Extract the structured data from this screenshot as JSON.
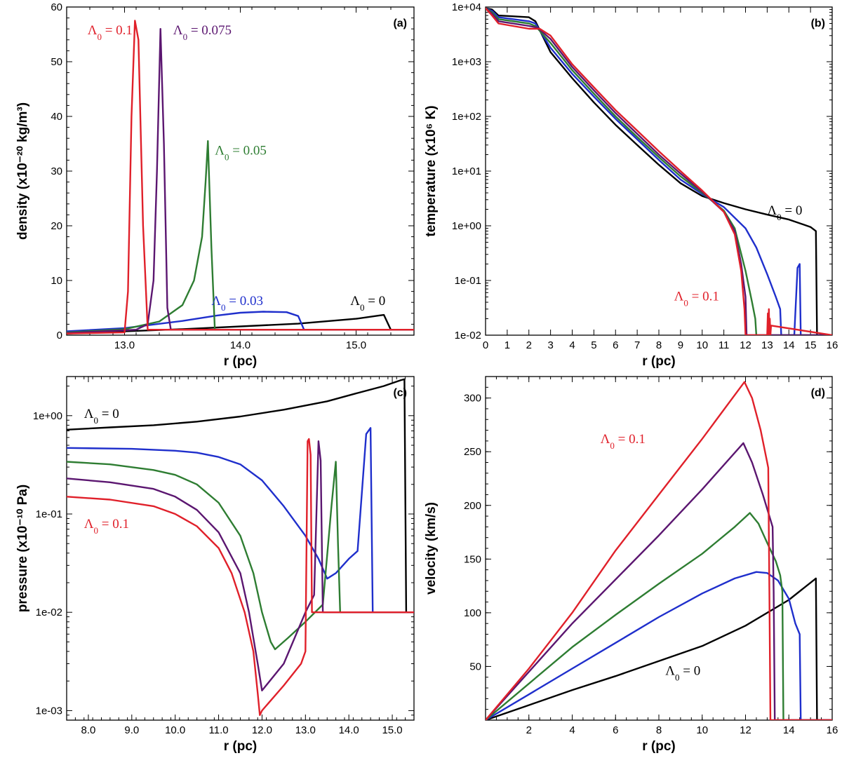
{
  "colors": {
    "lambda_0": "#000000",
    "lambda_0.03": "#1f2fcc",
    "lambda_0.05": "#2e7d32",
    "lambda_0.075": "#5b1670",
    "lambda_0.1": "#e0202a"
  },
  "chart_data": [
    {
      "id": "a",
      "type": "line",
      "panel_label": "(a)",
      "xlabel": "r (pc)",
      "ylabel": "density (x10⁻²⁰ kg/m³)",
      "xlim": [
        12.5,
        15.5
      ],
      "ylim": [
        0,
        60
      ],
      "yscale": "linear",
      "xticks": [
        13.0,
        14.0,
        15.0
      ],
      "xtick_labels": [
        "13.0",
        "14.0",
        "15.0"
      ],
      "yticks": [
        0,
        10,
        20,
        30,
        40,
        50,
        60
      ],
      "ytick_labels": [
        "0",
        "10",
        "20",
        "30",
        "40",
        "50",
        "60"
      ],
      "series": [
        {
          "name": "Λ0 = 0",
          "color": "#000000",
          "x": [
            12.5,
            13.5,
            14.5,
            15.0,
            15.2,
            15.24,
            15.3,
            15.5
          ],
          "y": [
            0.3,
            1.1,
            2.1,
            3.0,
            3.6,
            3.7,
            1.0,
            1.0
          ]
        },
        {
          "name": "Λ0 = 0.03",
          "color": "#1f2fcc",
          "x": [
            12.5,
            13.0,
            13.5,
            13.8,
            14.0,
            14.2,
            14.4,
            14.5,
            14.55,
            15.5
          ],
          "y": [
            0.7,
            1.3,
            2.6,
            3.6,
            4.1,
            4.3,
            4.2,
            3.5,
            1.0,
            1.0
          ]
        },
        {
          "name": "Λ0 = 0.05",
          "color": "#2e7d32",
          "x": [
            12.5,
            13.0,
            13.3,
            13.5,
            13.6,
            13.67,
            13.7,
            13.72,
            13.75,
            13.78,
            15.5
          ],
          "y": [
            0.5,
            1.1,
            2.5,
            5.5,
            10.0,
            18.0,
            28.0,
            35.5,
            16.0,
            1.0,
            1.0
          ]
        },
        {
          "name": "Λ0 = 0.075",
          "color": "#5b1670",
          "x": [
            12.5,
            13.1,
            13.2,
            13.25,
            13.28,
            13.31,
            13.34,
            13.37,
            13.4,
            15.5
          ],
          "y": [
            0.4,
            1.0,
            2.0,
            10.0,
            30.0,
            56.0,
            35.0,
            5.0,
            1.0,
            1.0
          ]
        },
        {
          "name": "Λ0 = 0.1",
          "color": "#e0202a",
          "x": [
            12.5,
            13.0,
            13.03,
            13.06,
            13.09,
            13.12,
            13.16,
            13.2,
            15.5
          ],
          "y": [
            0.3,
            0.5,
            8.0,
            40.0,
            57.5,
            54.0,
            20.0,
            1.0,
            1.0
          ]
        }
      ],
      "annotations": [
        {
          "text": "Λ0 = 0.1",
          "color": "#e0202a",
          "x": 12.68,
          "y": 55.0
        },
        {
          "text": "Λ0 = 0.075",
          "color": "#5b1670",
          "x": 13.42,
          "y": 55.0
        },
        {
          "text": "Λ0 = 0.05",
          "color": "#2e7d32",
          "x": 13.78,
          "y": 33.0
        },
        {
          "text": "Λ0 = 0.03",
          "color": "#1f2fcc",
          "x": 13.75,
          "y": 5.5
        },
        {
          "text": "Λ0 = 0",
          "color": "#000000",
          "x": 14.95,
          "y": 5.5
        }
      ]
    },
    {
      "id": "b",
      "type": "line",
      "panel_label": "(b)",
      "xlabel": "r (pc)",
      "ylabel": "temperature (x10⁶ K)",
      "xlim": [
        0,
        16
      ],
      "ylim": [
        0.01,
        10000
      ],
      "yscale": "log",
      "xticks": [
        0,
        1,
        2,
        3,
        4,
        5,
        6,
        7,
        8,
        9,
        10,
        11,
        12,
        13,
        14,
        15,
        16
      ],
      "xtick_labels": [
        "0",
        "1",
        "2",
        "3",
        "4",
        "5",
        "6",
        "7",
        "8",
        "9",
        "10",
        "11",
        "12",
        "13",
        "14",
        "15",
        "16"
      ],
      "yticks": [
        0.01,
        0.1,
        1,
        10,
        100,
        1000,
        10000
      ],
      "ytick_labels": [
        "1e-02",
        "1e-01",
        "1e+00",
        "1e+01",
        "1e+02",
        "1e+03",
        "1e+04"
      ],
      "series": [
        {
          "name": "Λ0 = 0",
          "color": "#000000",
          "x": [
            0.0,
            0.3,
            0.6,
            2.0,
            2.3,
            3.0,
            4.0,
            5.0,
            6.0,
            7.0,
            8.0,
            9.0,
            10.0,
            11.0,
            12.0,
            13.0,
            14.0,
            15.0,
            15.25,
            15.3,
            16.0
          ],
          "y": [
            9500,
            9000,
            7000,
            6500,
            5500,
            1500,
            500,
            180,
            70,
            30,
            13,
            6.0,
            3.5,
            2.6,
            2.0,
            1.6,
            1.3,
            0.95,
            0.8,
            0.01,
            0.01
          ]
        },
        {
          "name": "Λ0 = 0.03",
          "color": "#1f2fcc",
          "x": [
            0.0,
            0.3,
            0.6,
            2.0,
            2.3,
            3.0,
            4.0,
            5.0,
            6.0,
            7.0,
            8.0,
            9.0,
            10.0,
            11.0,
            12.0,
            12.5,
            13.0,
            13.4,
            13.6,
            13.65,
            14.25,
            14.4,
            14.5,
            14.55,
            16.0
          ],
          "y": [
            9500,
            8500,
            6500,
            5500,
            5000,
            1800,
            600,
            230,
            90,
            38,
            16,
            7.0,
            3.8,
            2.2,
            0.9,
            0.4,
            0.13,
            0.05,
            0.03,
            0.01,
            0.01,
            0.17,
            0.2,
            0.01,
            0.01
          ]
        },
        {
          "name": "Λ0 = 0.05",
          "color": "#2e7d32",
          "x": [
            0.0,
            0.3,
            0.6,
            2.0,
            2.3,
            3.0,
            4.0,
            5.0,
            6.0,
            7.0,
            8.0,
            9.0,
            10.0,
            11.0,
            11.5,
            12.0,
            12.3,
            12.45,
            12.5,
            16.0
          ],
          "y": [
            9500,
            8000,
            6000,
            5000,
            4500,
            2200,
            700,
            260,
            100,
            42,
            18,
            8.0,
            4.0,
            1.9,
            0.9,
            0.15,
            0.04,
            0.02,
            0.01,
            0.01
          ]
        },
        {
          "name": "Λ0 = 0.075",
          "color": "#5b1670",
          "x": [
            0.0,
            0.3,
            0.6,
            2.0,
            2.4,
            3.0,
            4.0,
            5.0,
            6.0,
            7.0,
            8.0,
            9.0,
            10.0,
            11.0,
            11.5,
            11.8,
            12.0,
            12.05,
            16.0
          ],
          "y": [
            9500,
            7500,
            5500,
            4500,
            4200,
            2600,
            800,
            300,
            115,
            48,
            20,
            9.0,
            4.2,
            1.8,
            0.8,
            0.2,
            0.05,
            0.01,
            0.01
          ]
        },
        {
          "name": "Λ0 = 0.1",
          "color": "#e0202a",
          "x": [
            0.0,
            0.3,
            0.6,
            2.0,
            2.5,
            3.0,
            4.0,
            5.0,
            6.0,
            7.0,
            8.0,
            9.0,
            10.0,
            11.0,
            11.5,
            11.8,
            11.95,
            12.0,
            13.0,
            13.03,
            13.05,
            13.08,
            13.1,
            13.12,
            13.15,
            13.18,
            16.0
          ],
          "y": [
            9500,
            7000,
            5000,
            4000,
            4000,
            3000,
            900,
            340,
            130,
            55,
            23,
            10,
            4.4,
            1.8,
            0.7,
            0.15,
            0.03,
            0.01,
            0.01,
            0.025,
            0.01,
            0.03,
            0.01,
            0.02,
            0.01,
            0.015,
            0.01
          ]
        }
      ],
      "annotations": [
        {
          "text": "Λ0 = 0",
          "color": "#000000",
          "x": 13.0,
          "y": 1.6
        },
        {
          "text": "Λ0 = 0.1",
          "color": "#e0202a",
          "x": 8.7,
          "y": 0.043
        }
      ]
    },
    {
      "id": "c",
      "type": "line",
      "panel_label": "(c)",
      "xlabel": "r (pc)",
      "ylabel": "pressure (x10⁻¹⁰ Pa)",
      "xlim": [
        7.5,
        15.5
      ],
      "ylim": [
        0.0008,
        2.5
      ],
      "yscale": "log",
      "xticks": [
        8,
        9,
        10,
        11,
        12,
        13,
        14,
        15
      ],
      "xtick_labels": [
        "8.0",
        "9.0",
        "10.0",
        "11.0",
        "12.0",
        "13.0",
        "14.0",
        "15.0"
      ],
      "yticks": [
        0.001,
        0.01,
        0.1,
        1
      ],
      "ytick_labels": [
        "1e-03",
        "1e-02",
        "1e-01",
        "1e+00"
      ],
      "series": [
        {
          "name": "Λ0 = 0",
          "color": "#000000",
          "x": [
            7.5,
            8.5,
            9.5,
            10.5,
            11.5,
            12.5,
            13.5,
            14.2,
            14.8,
            15.2,
            15.28,
            15.32,
            15.5
          ],
          "y": [
            0.72,
            0.76,
            0.8,
            0.87,
            0.98,
            1.15,
            1.4,
            1.7,
            2.0,
            2.3,
            2.35,
            0.01,
            0.01
          ]
        },
        {
          "name": "Λ0 = 0.03",
          "color": "#1f2fcc",
          "x": [
            7.5,
            9.0,
            10.0,
            10.5,
            11.0,
            11.5,
            12.0,
            12.5,
            13.0,
            13.3,
            13.5,
            13.7,
            14.0,
            14.2,
            14.4,
            14.5,
            14.55,
            15.5
          ],
          "y": [
            0.47,
            0.46,
            0.44,
            0.42,
            0.38,
            0.32,
            0.22,
            0.12,
            0.06,
            0.035,
            0.022,
            0.025,
            0.035,
            0.042,
            0.65,
            0.75,
            0.01,
            0.01
          ]
        },
        {
          "name": "Λ0 = 0.05",
          "color": "#2e7d32",
          "x": [
            7.5,
            8.5,
            9.5,
            10.0,
            10.5,
            11.0,
            11.5,
            11.8,
            12.0,
            12.2,
            12.3,
            12.6,
            13.0,
            13.4,
            13.6,
            13.7,
            13.75,
            13.8,
            15.5
          ],
          "y": [
            0.34,
            0.32,
            0.28,
            0.25,
            0.2,
            0.13,
            0.06,
            0.025,
            0.01,
            0.005,
            0.0042,
            0.0055,
            0.008,
            0.012,
            0.12,
            0.34,
            0.05,
            0.01,
            0.01
          ]
        },
        {
          "name": "Λ0 = 0.075",
          "color": "#5b1670",
          "x": [
            7.5,
            8.5,
            9.5,
            10.0,
            10.5,
            11.0,
            11.5,
            11.7,
            11.9,
            12.0,
            12.5,
            13.0,
            13.2,
            13.3,
            13.35,
            13.4,
            15.5
          ],
          "y": [
            0.23,
            0.21,
            0.18,
            0.15,
            0.11,
            0.065,
            0.025,
            0.01,
            0.003,
            0.0016,
            0.003,
            0.01,
            0.015,
            0.55,
            0.35,
            0.01,
            0.01
          ]
        },
        {
          "name": "Λ0 = 0.1",
          "color": "#e0202a",
          "x": [
            7.5,
            8.5,
            9.5,
            10.0,
            10.5,
            11.0,
            11.3,
            11.6,
            11.8,
            11.9,
            11.95,
            12.0,
            12.5,
            12.9,
            13.0,
            13.05,
            13.08,
            13.12,
            13.15,
            15.5
          ],
          "y": [
            0.15,
            0.14,
            0.12,
            0.1,
            0.075,
            0.045,
            0.025,
            0.01,
            0.004,
            0.0015,
            0.0009,
            0.001,
            0.0018,
            0.003,
            0.004,
            0.55,
            0.58,
            0.4,
            0.01,
            0.01
          ]
        }
      ],
      "annotations": [
        {
          "text": "Λ0 = 0",
          "color": "#000000",
          "x": 7.9,
          "y": 0.95
        },
        {
          "text": "Λ0 = 0.1",
          "color": "#e0202a",
          "x": 7.9,
          "y": 0.072
        }
      ]
    },
    {
      "id": "d",
      "type": "line",
      "panel_label": "(d)",
      "xlabel": "r (pc)",
      "ylabel": "velocity (km/s)",
      "xlim": [
        0,
        16
      ],
      "ylim": [
        0,
        320
      ],
      "yscale": "linear",
      "xticks": [
        2,
        4,
        6,
        8,
        10,
        12,
        14,
        16
      ],
      "xtick_labels": [
        "2",
        "4",
        "6",
        "8",
        "10",
        "12",
        "14",
        "16"
      ],
      "yticks": [
        50,
        100,
        150,
        200,
        250,
        300
      ],
      "ytick_labels": [
        "50",
        "100",
        "150",
        "200",
        "250",
        "300"
      ],
      "series": [
        {
          "name": "Λ0 = 0",
          "color": "#000000",
          "x": [
            0.0,
            2.0,
            4.0,
            6.0,
            8.0,
            10.0,
            12.0,
            14.0,
            15.25,
            15.3,
            16.0
          ],
          "y": [
            0,
            14,
            28,
            41,
            55,
            69,
            88,
            112,
            132,
            0,
            0
          ]
        },
        {
          "name": "Λ0 = 0.03",
          "color": "#1f2fcc",
          "x": [
            0.0,
            2.0,
            4.0,
            6.0,
            8.0,
            10.0,
            11.5,
            12.5,
            13.0,
            13.5,
            14.0,
            14.3,
            14.5,
            14.55,
            16.0
          ],
          "y": [
            0,
            24,
            48,
            72,
            96,
            118,
            132,
            138,
            137,
            130,
            113,
            90,
            80,
            0,
            0
          ]
        },
        {
          "name": "Λ0 = 0.05",
          "color": "#2e7d32",
          "x": [
            0.0,
            2.0,
            4.0,
            6.0,
            8.0,
            10.0,
            11.5,
            12.2,
            12.6,
            13.0,
            13.4,
            13.6,
            13.7,
            13.75,
            16.0
          ],
          "y": [
            0,
            34,
            68,
            98,
            127,
            155,
            180,
            193,
            183,
            165,
            148,
            135,
            120,
            0,
            0
          ]
        },
        {
          "name": "Λ0 = 0.075",
          "color": "#5b1670",
          "x": [
            0.0,
            2.0,
            4.0,
            6.0,
            8.0,
            10.0,
            11.9,
            12.3,
            12.8,
            13.1,
            13.25,
            13.3,
            13.35,
            16.0
          ],
          "y": [
            0,
            45,
            90,
            131,
            172,
            215,
            258,
            240,
            210,
            190,
            180,
            120,
            0,
            0
          ]
        },
        {
          "name": "Λ0 = 0.1",
          "color": "#e0202a",
          "x": [
            0.0,
            2.0,
            4.0,
            6.0,
            8.0,
            10.0,
            11.95,
            12.3,
            12.7,
            13.0,
            13.05,
            13.1,
            13.15,
            16.0
          ],
          "y": [
            0,
            48,
            100,
            158,
            210,
            262,
            315,
            300,
            270,
            240,
            235,
            120,
            0,
            0
          ]
        }
      ],
      "annotations": [
        {
          "text": "Λ0 = 0.1",
          "color": "#e0202a",
          "x": 5.3,
          "y": 258
        },
        {
          "text": "Λ0 = 0",
          "color": "#000000",
          "x": 8.3,
          "y": 42
        }
      ]
    }
  ]
}
